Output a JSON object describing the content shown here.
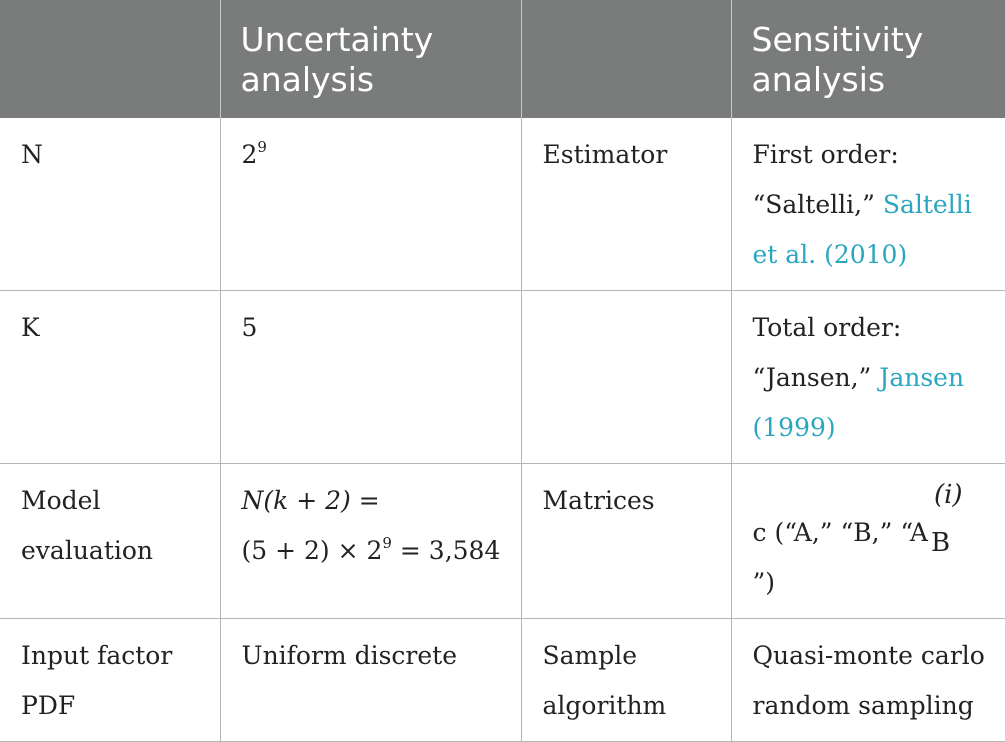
{
  "table": {
    "headers": [
      "",
      "Uncertainty analysis",
      "",
      "Sensitivity analysis"
    ],
    "rows": [
      {
        "label": "N",
        "ua_value_base": "2",
        "ua_value_exp": "9",
        "sa_label": "Estimator",
        "sa_value_line1": "First order:",
        "sa_value_quote": "“Saltelli,”",
        "sa_value_cite": "Saltelli et al. (2010)"
      },
      {
        "label": "K",
        "ua_value": "5",
        "sa_label": "",
        "sa_value_line1": "Total order:",
        "sa_value_quote": "“Jansen,”",
        "sa_value_cite": "Jansen (1999)"
      },
      {
        "label": "Model evaluation",
        "formula_lhs": "N(k + 2) =",
        "formula_rhs_pre": "(5 + 2) × 2",
        "formula_rhs_exp": "9",
        "formula_rhs_post": " = 3,584",
        "sa_label": "Matrices",
        "matrices_pre": "c (“A,” “B,” “A",
        "matrices_sup": "(i)",
        "matrices_sub": "B",
        "matrices_post": "”)"
      },
      {
        "label": "Input factor PDF",
        "ua_value": "Uniform discrete",
        "sa_label": "Sample algorithm",
        "sa_value": "Quasi-monte carlo random sampling"
      }
    ]
  },
  "colors": {
    "header_bg": "#7a7c7c",
    "header_text": "#ffffff",
    "citation_link": "#2aa6c0",
    "border": "#b5b5b5"
  }
}
